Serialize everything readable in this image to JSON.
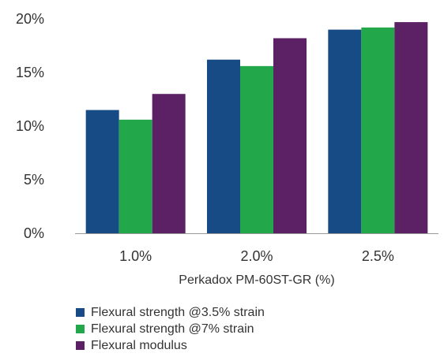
{
  "chart_data": {
    "type": "bar",
    "title": "",
    "xlabel": "Perkadox PM-60ST-GR (%)",
    "ylabel": "",
    "categories": [
      "1.0%",
      "2.0%",
      "2.5%"
    ],
    "yticks": [
      "0%",
      "5%",
      "10%",
      "15%",
      "20%"
    ],
    "ylim": [
      0,
      20
    ],
    "grid": false,
    "legend_position": "bottom-left",
    "series": [
      {
        "name": "Flexural strength @3.5% strain",
        "values": [
          11.5,
          16.2,
          19.0
        ],
        "color": "#174b86"
      },
      {
        "name": "Flexural strength @7% strain",
        "values": [
          10.6,
          15.6,
          19.2
        ],
        "color": "#22a84a"
      },
      {
        "name": "Flexural modulus",
        "values": [
          13.0,
          18.2,
          19.7
        ],
        "color": "#5c2165"
      }
    ]
  }
}
